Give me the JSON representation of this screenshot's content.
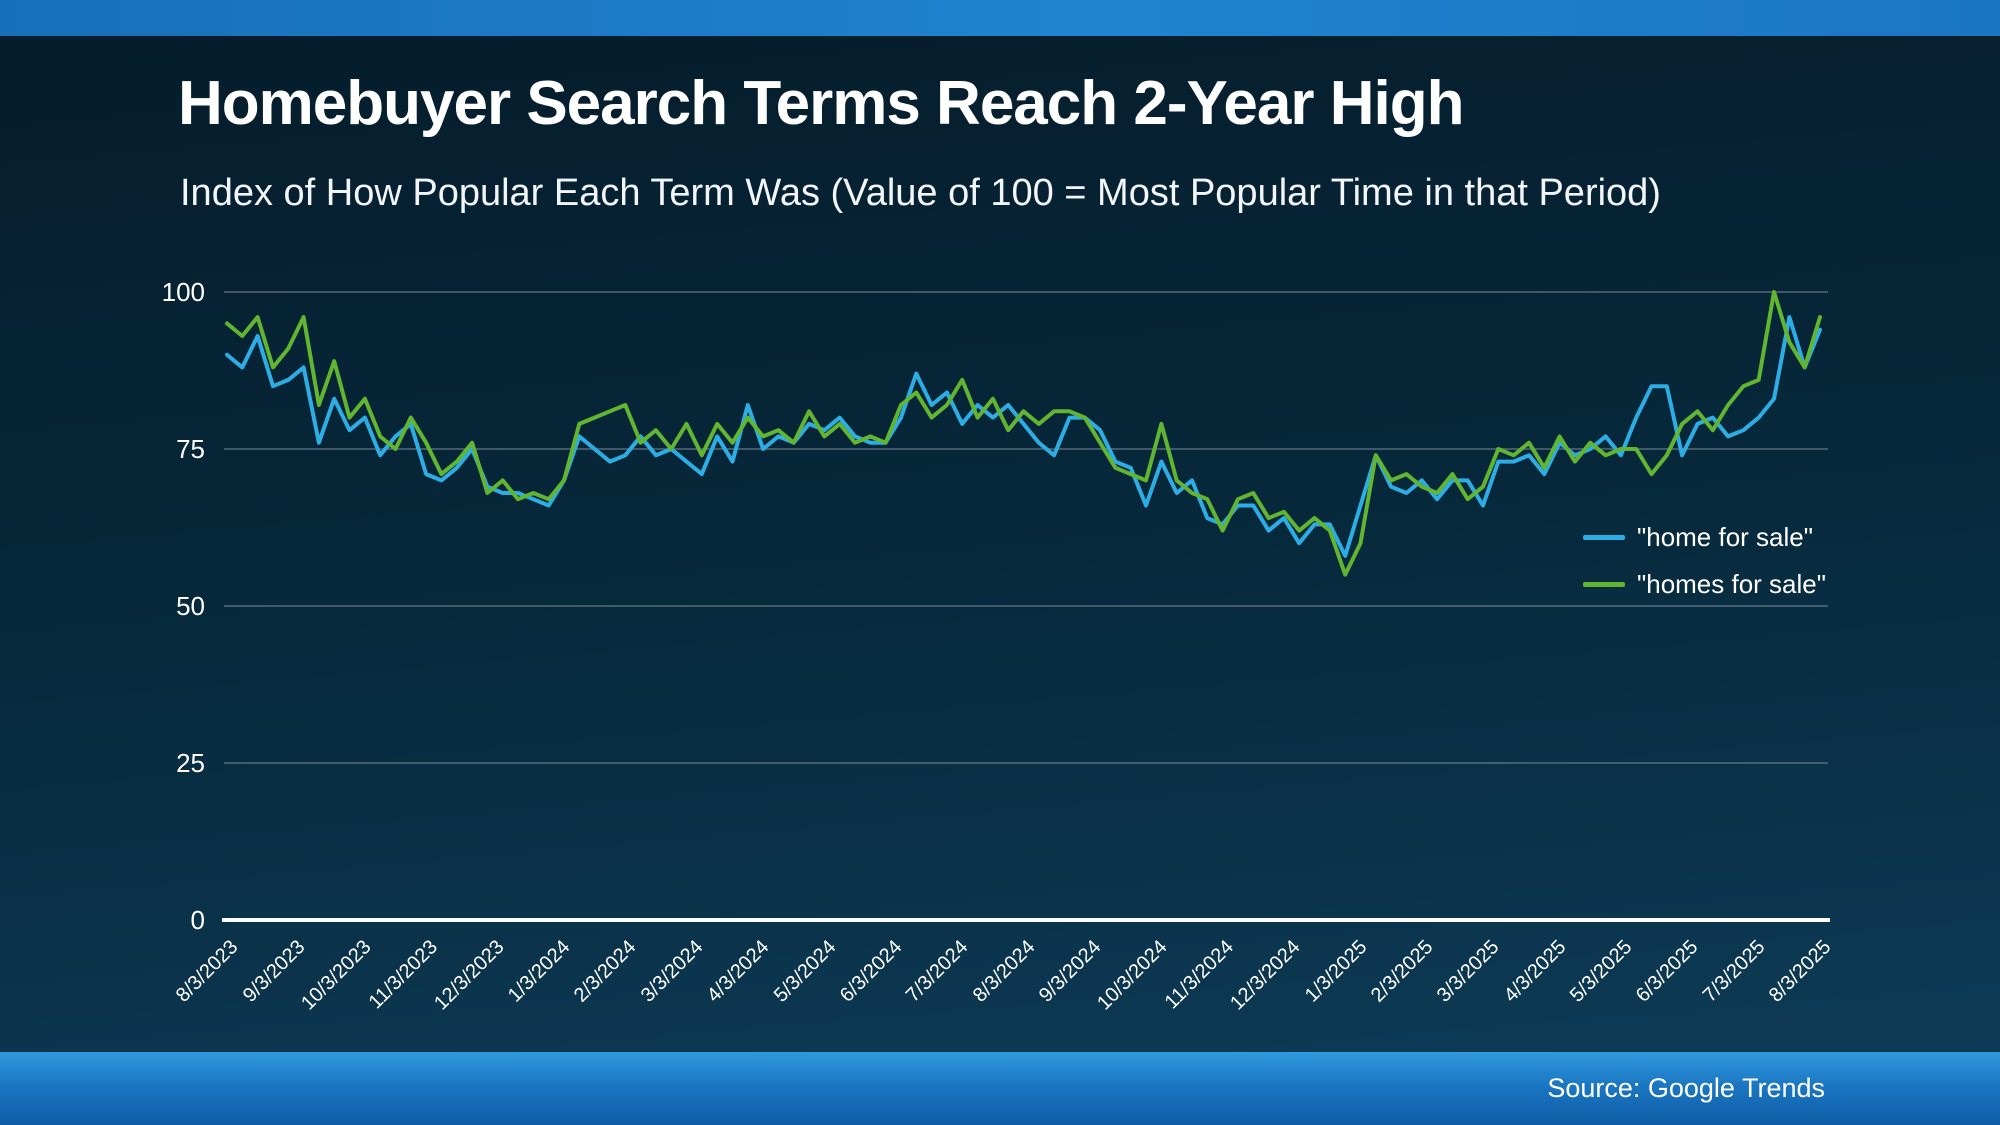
{
  "page": {
    "title": "Homebuyer Search Terms Reach 2-Year High",
    "subtitle": "Index of How Popular Each Term Was (Value of 100 = Most Popular Time in that Period)",
    "source": "Source: Google Trends"
  },
  "chart_data": {
    "type": "line",
    "title": "Homebuyer Search Terms Reach 2-Year High",
    "subtitle": "Index of How Popular Each Term Was (Value of 100 = Most Popular Time in that Period)",
    "ylim": [
      0,
      100
    ],
    "yticks": [
      0,
      25,
      50,
      75,
      100
    ],
    "grid": true,
    "legend_position": "right-inside",
    "x_tick_labels": [
      "8/3/2023",
      "9/3/2023",
      "10/3/2023",
      "11/3/2023",
      "12/3/2023",
      "1/3/2024",
      "2/3/2024",
      "3/3/2024",
      "4/3/2024",
      "5/3/2024",
      "6/3/2024",
      "7/3/2024",
      "8/3/2024",
      "9/3/2024",
      "10/3/2024",
      "11/3/2024",
      "12/3/2024",
      "1/3/2025",
      "2/3/2025",
      "3/3/2025",
      "4/3/2025",
      "5/3/2025",
      "6/3/2025",
      "7/3/2025",
      "8/3/2025"
    ],
    "series": [
      {
        "name": "\"home for sale\"",
        "color": "#2caee4",
        "values": [
          90,
          88,
          93,
          85,
          86,
          88,
          76,
          83,
          78,
          80,
          74,
          77,
          79,
          71,
          70,
          72,
          75,
          69,
          68,
          68,
          67,
          66,
          70,
          77,
          75,
          73,
          74,
          77,
          74,
          75,
          73,
          71,
          77,
          73,
          82,
          75,
          77,
          76,
          79,
          78,
          80,
          77,
          76,
          76,
          80,
          87,
          82,
          84,
          79,
          82,
          80,
          82,
          79,
          76,
          74,
          80,
          80,
          78,
          73,
          72,
          66,
          73,
          68,
          70,
          64,
          63,
          66,
          66,
          62,
          64,
          60,
          63,
          63,
          58,
          66,
          74,
          69,
          68,
          70,
          67,
          70,
          70,
          66,
          73,
          73,
          74,
          71,
          76,
          74,
          75,
          77,
          74,
          80,
          85,
          85,
          74,
          79,
          80,
          77,
          78,
          80,
          83,
          96,
          88,
          94
        ]
      },
      {
        "name": "\"homes for sale\"",
        "color": "#61b530",
        "values": [
          95,
          93,
          96,
          88,
          91,
          96,
          82,
          89,
          80,
          83,
          77,
          75,
          80,
          76,
          71,
          73,
          76,
          68,
          70,
          67,
          68,
          67,
          70,
          79,
          80,
          81,
          82,
          76,
          78,
          75,
          79,
          74,
          79,
          76,
          80,
          77,
          78,
          76,
          81,
          77,
          79,
          76,
          77,
          76,
          82,
          84,
          80,
          82,
          86,
          80,
          83,
          78,
          81,
          79,
          81,
          81,
          80,
          76,
          72,
          71,
          70,
          79,
          70,
          68,
          67,
          62,
          67,
          68,
          64,
          65,
          62,
          64,
          62,
          55,
          60,
          74,
          70,
          71,
          69,
          68,
          71,
          67,
          69,
          75,
          74,
          76,
          72,
          77,
          73,
          76,
          74,
          75,
          75,
          71,
          74,
          79,
          81,
          78,
          82,
          85,
          86,
          100,
          92,
          88,
          96
        ]
      }
    ],
    "colors": {
      "gridline": "#93a1ab",
      "axis": "#ffffff",
      "accent_bar": "#1f84d0"
    }
  }
}
